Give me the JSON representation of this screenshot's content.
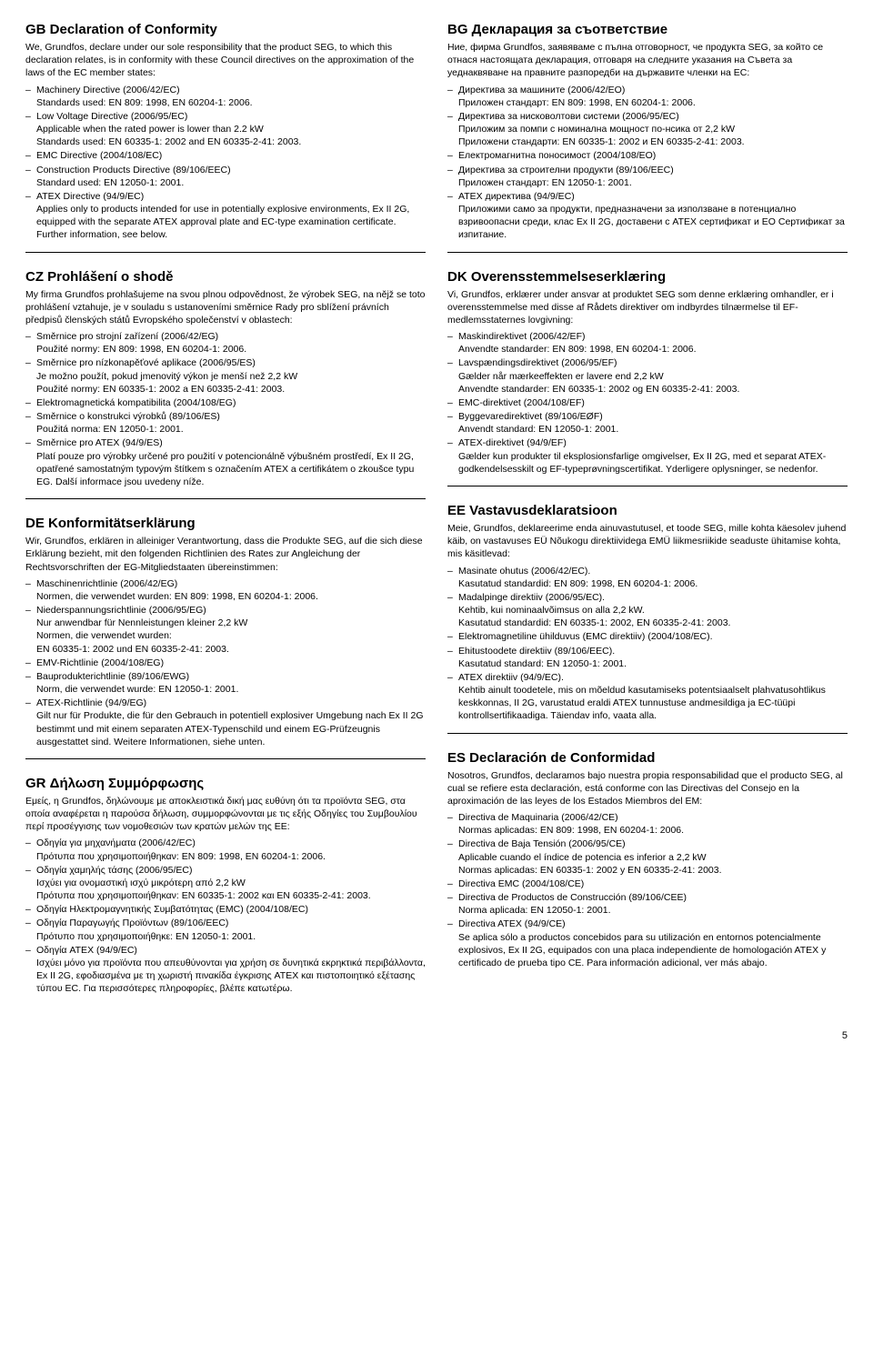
{
  "page_number": "5",
  "sections": [
    {
      "col": "left",
      "id": "gb",
      "title": "GB Declaration of Conformity",
      "intro": "We, Grundfos, declare under our sole responsibility that the product SEG, to which this declaration relates, is in conformity with these Council directives on the approximation of the laws of the EC member states:",
      "items": [
        [
          "Machinery Directive (2006/42/EC)",
          "Standards used: EN 809: 1998, EN 60204-1: 2006."
        ],
        [
          "Low Voltage Directive (2006/95/EC)",
          "Applicable when the rated power is lower than 2.2 kW",
          "Standards used: EN 60335-1: 2002 and EN 60335-2-41: 2003."
        ],
        [
          "EMC Directive (2004/108/EC)"
        ],
        [
          "Construction Products Directive (89/106/EEC)",
          "Standard used: EN 12050-1: 2001."
        ],
        [
          "ATEX Directive (94/9/EC)",
          "Applies only to products intended for use in potentially explosive environments, Ex II 2G, equipped with the separate ATEX approval plate and EC-type examination certificate. Further information, see below."
        ]
      ]
    },
    {
      "col": "right",
      "id": "bg",
      "title": "BG Декларация за съответствие",
      "intro": "Ние, фирма Grundfos, заявяваме с пълна отговорност, че продукта SEG, за който се отнася настоящата декларация, отговаря на следните указания на Съвета за уеднаквяване на правните разпоредби на държавите членки на ЕС:",
      "items": [
        [
          "Директива за машините (2006/42/EO)",
          "Приложен стандарт: EN 809: 1998, EN 60204-1: 2006."
        ],
        [
          "Директива за нисковолтови системи (2006/95/EC)",
          "Приложим за помпи с номинална мощност по-нсика от 2,2 kW",
          "Приложени стандарти: EN 60335-1: 2002 и EN 60335-2-41: 2003."
        ],
        [
          "Електромагнитна поносимост (2004/108/EO)"
        ],
        [
          "Директива за строителни продукти (89/106/EEC)",
          "Приложен стандарт: EN 12050-1: 2001."
        ],
        [
          "ATEX директива (94/9/EC)",
          "Приложими само за продукти, предназначени за използване в потенциално взривоопасни среди, клас Ex II 2G, доставени с ATEX сертификат и ЕО Сертификат за изпитание."
        ]
      ]
    },
    {
      "col": "left",
      "id": "cz",
      "title": "CZ Prohlášení o shodě",
      "intro": "My firma Grundfos prohlašujeme na svou plnou odpovědnost, že výrobek SEG, na nějž se toto prohlášení vztahuje, je v souladu s ustanoveními směrnice Rady pro sblížení právních předpisů členských států Evropského společenství v oblastech:",
      "items": [
        [
          "Směrnice pro strojní zařízení (2006/42/EG)",
          "Použité normy: EN 809: 1998, EN 60204-1: 2006."
        ],
        [
          "Směrnice pro nízkonapěťové aplikace (2006/95/ES)",
          "Je možno použít, pokud jmenovitý výkon je menší než 2,2 kW",
          "Použité normy: EN 60335-1: 2002 a EN 60335-2-41: 2003."
        ],
        [
          "Elektromagnetická kompatibilita (2004/108/EG)"
        ],
        [
          "Směrnice o konstrukci výrobků (89/106/ES)",
          "Použitá norma: EN 12050-1: 2001."
        ],
        [
          "Směrnice pro ATEX (94/9/ES)",
          "Platí pouze pro výrobky určené pro použití v potencionálně výbušném prostředí, Ex II 2G, opatřené samostatným typovým štítkem s označením ATEX a certifikátem o zkoušce typu EG. Další informace jsou uvedeny níže."
        ]
      ]
    },
    {
      "col": "right",
      "id": "dk",
      "title": "DK Overensstemmelseserklæring",
      "intro": "Vi, Grundfos, erklærer under ansvar at produktet SEG som denne erklæring omhandler, er i overensstemmelse med disse af Rådets direktiver om indbyrdes tilnærmelse til EF-medlemsstaternes lovgivning:",
      "items": [
        [
          "Maskindirektivet (2006/42/EF)",
          "Anvendte standarder: EN 809: 1998, EN 60204-1: 2006."
        ],
        [
          "Lavspændingsdirektivet (2006/95/EF)",
          "Gælder når mærkeeffekten er lavere end 2,2 kW",
          "Anvendte standarder: EN 60335-1: 2002 og EN 60335-2-41: 2003."
        ],
        [
          "EMC-direktivet (2004/108/EF)"
        ],
        [
          "Byggevaredirektivet (89/106/EØF)",
          "Anvendt standard: EN 12050-1: 2001."
        ],
        [
          "ATEX-direktivet (94/9/EF)",
          "Gælder kun produkter til eksplosionsfarlige omgivelser, Ex II 2G, med et separat ATEX-godkendelsesskilt og EF-typeprøvningscertifikat. Yderligere oplysninger, se nedenfor."
        ]
      ]
    },
    {
      "col": "left",
      "id": "de",
      "title": "DE Konformitätserklärung",
      "intro": "Wir, Grundfos, erklären in alleiniger Verantwortung, dass die Produkte SEG, auf die sich diese Erklärung bezieht, mit den folgenden Richtlinien des Rates zur Angleichung der Rechtsvorschriften der EG-Mitgliedstaaten übereinstimmen:",
      "items": [
        [
          "Maschinenrichtlinie (2006/42/EG)",
          "Normen, die verwendet wurden: EN 809: 1998, EN 60204-1: 2006."
        ],
        [
          "Niederspannungsrichtlinie (2006/95/EG)",
          "Nur anwendbar für Nennleistungen kleiner 2,2 kW",
          "Normen, die verwendet wurden:",
          "EN 60335-1: 2002 und EN 60335-2-41: 2003."
        ],
        [
          "EMV-Richtlinie (2004/108/EG)"
        ],
        [
          "Bauprodukterichtlinie (89/106/EWG)",
          "Norm, die verwendet wurde: EN 12050-1: 2001."
        ],
        [
          "ATEX-Richtlinie (94/9/EG)",
          "Gilt nur für Produkte, die für den Gebrauch in potentiell explosiver Umgebung nach Ex II 2G bestimmt und mit einem separaten ATEX-Typenschild und einem EG-Prüfzeugnis ausgestattet sind. Weitere Informationen, siehe unten."
        ]
      ]
    },
    {
      "col": "right",
      "id": "ee",
      "title": "EE Vastavusdeklaratsioon",
      "intro": "Meie, Grundfos, deklareerime enda ainuvastutusel, et toode SEG, mille kohta käesolev juhend käib, on vastavuses EÜ Nõukogu direktiividega EMÜ liikmesriikide seaduste ühitamise kohta, mis käsitlevad:",
      "items": [
        [
          "Masinate ohutus (2006/42/EC).",
          "Kasutatud standardid: EN 809: 1998, EN 60204-1: 2006."
        ],
        [
          "Madalpinge direktiiv (2006/95/EC).",
          "Kehtib, kui nominaalvõimsus on alla 2,2 kW.",
          "Kasutatud standardid: EN 60335-1: 2002, EN 60335-2-41: 2003."
        ],
        [
          "Elektromagnetiline ühilduvus (EMC direktiiv) (2004/108/EC)."
        ],
        [
          "Ehitustoodete direktiiv (89/106/EEC).",
          "Kasutatud standard: EN 12050-1: 2001."
        ],
        [
          "ATEX direktiiv (94/9/EC).",
          "Kehtib ainult toodetele, mis on mõeldud kasutamiseks potentsiaalselt plahvatusohtlikus keskkonnas, II 2G, varustatud eraldi ATEX tunnustuse andmesildiga ja EC-tüüpi kontrollsertifikaadiga. Täiendav info, vaata alla."
        ]
      ]
    },
    {
      "col": "left",
      "id": "gr",
      "title": "GR Δήλωση Συμμόρφωσης",
      "intro": "Εμείς, η Grundfos, δηλώνουμε με αποκλειστικά δική μας ευθύνη ότι τα προϊόντα SEG, στα οποία αναφέρεται η παρούσα δήλωση, συμμορφώνονται με τις εξής Οδηγίες του Συμβουλίου περί προσέγγισης των νομοθεσιών των κρατών μελών της ΕΕ:",
      "items": [
        [
          "Οδηγία για μηχανήματα (2006/42/EC)",
          "Πρότυπα που χρησιμοποιήθηκαν: EN 809: 1998, EN 60204-1: 2006."
        ],
        [
          "Οδηγία χαμηλής τάσης (2006/95/EC)",
          "Ισχύει για ονομαστική ισχύ μικρότερη από 2,2 kW",
          "Πρότυπα που χρησιμοποιήθηκαν: EN 60335-1: 2002 και EN 60335-2-41: 2003."
        ],
        [
          "Οδηγία Ηλεκτρομαγνητικής Συμβατότητας (EMC) (2004/108/EC)"
        ],
        [
          "Οδηγία Παραγωγής Προϊόντων (89/106/EEC)",
          "Πρότυπο που χρησιμοποιήθηκε: EN 12050-1: 2001."
        ],
        [
          "Οδηγία ATEX (94/9/EC)",
          "Ισχύει μόνο για προϊόντα που απευθύνονται για χρήση σε δυνητικά εκρηκτικά περιβάλλοντα, Ex II 2G, εφοδιασμένα με τη χωριστή πινακίδα έγκρισης ATEX και πιστοποιητικό εξέτασης τύπου EC. Για περισσότερες πληροφορίες, βλέπε κατωτέρω."
        ]
      ]
    },
    {
      "col": "right",
      "id": "es",
      "title": "ES Declaración de Conformidad",
      "intro": "Nosotros, Grundfos, declaramos bajo nuestra propia responsabilidad que el producto SEG, al cual se refiere esta declaración, está conforme con las Directivas del Consejo en la aproximación de las leyes de los Estados Miembros del EM:",
      "items": [
        [
          "Directiva de Maquinaria (2006/42/CE)",
          "Normas aplicadas: EN 809: 1998, EN 60204-1: 2006."
        ],
        [
          "Directiva de Baja Tensión (2006/95/CE)",
          "Aplicable cuando el índice de potencia es inferior a 2,2 kW",
          "Normas aplicadas: EN 60335-1: 2002 y EN 60335-2-41: 2003."
        ],
        [
          "Directiva EMC (2004/108/CE)"
        ],
        [
          "Directiva de Productos de Construcción (89/106/CEE)",
          "Norma aplicada: EN 12050-1: 2001."
        ],
        [
          "Directiva ATEX (94/9/CE)",
          "Se aplica sólo a productos concebidos para su utilización en entornos potencialmente explosivos, Ex II 2G, equipados con una placa independiente de homologación ATEX y certificado de prueba tipo CE. Para información adicional, ver más abajo."
        ]
      ]
    }
  ]
}
